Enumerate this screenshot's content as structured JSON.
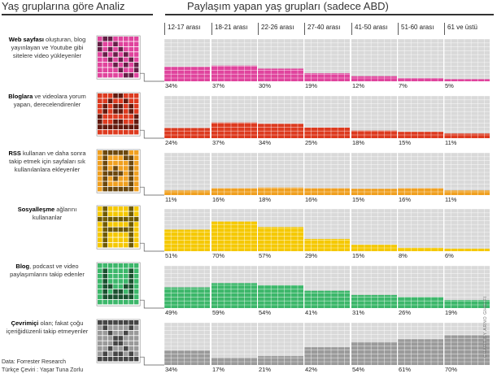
{
  "header": {
    "left_title": "Yaş gruplarına göre Analiz",
    "right_title": "Paylaşım yapan yaş grupları (sadece ABD)"
  },
  "footer": {
    "source": "Data: Forrester Research",
    "translator": "Türkçe Çeviri : Yaşar Tuna Zorlu",
    "credit": "CHART BY ARNO GHELFI"
  },
  "colors": {
    "grid_empty": "#d9d9d9",
    "background": "#ffffff"
  },
  "chart_data": {
    "type": "bar",
    "title": "Paylaşım yapan yaş grupları (sadece ABD)",
    "unit": "%",
    "categories": [
      "12-17 arası",
      "18-21 arası",
      "22-26 arası",
      "27-40 arası",
      "41-50 arası",
      "51-60 arası",
      "61 ve üstü"
    ],
    "series": [
      {
        "bold": "Web sayfası",
        "label": " oluşturan, blog yayınlayan ve Youtube gibi sitelere video yükleyenler",
        "icon": "web-page-icon",
        "color": "#e0449d",
        "values": [
          34,
          37,
          30,
          19,
          12,
          7,
          5
        ]
      },
      {
        "bold": "Bloglara",
        "label": " ve videolara yorum yapan, derecelendirenler",
        "icon": "comment-icon",
        "color": "#dd3a1f",
        "values": [
          24,
          37,
          34,
          25,
          18,
          15,
          11
        ]
      },
      {
        "bold": "RSS",
        "label": " kullanan ve daha sonra takip etmek için sayfaları sık kullanılanlara ekleyenler",
        "icon": "rss-bookmark-icon",
        "color": "#f0a020",
        "values": [
          11,
          16,
          18,
          16,
          15,
          16,
          11
        ]
      },
      {
        "bold": "Sosyalleşme",
        "label": " ağlarını kullananlar",
        "icon": "social-network-icon",
        "color": "#f5c800",
        "values": [
          51,
          70,
          57,
          29,
          15,
          8,
          6
        ]
      },
      {
        "bold": "Blog",
        "label": ", podcast ve video paylaşımlarını takip edenler",
        "icon": "media-follow-icon",
        "color": "#3cb76a",
        "values": [
          49,
          59,
          54,
          41,
          31,
          26,
          19
        ]
      },
      {
        "bold": "Çevrimiçi",
        "label": " olan; fakat çoğu içeriğidüzenli takip etmeyenler",
        "icon": "hourglass-icon",
        "color": "#9a9a9a",
        "values": [
          34,
          17,
          21,
          42,
          54,
          61,
          70
        ]
      }
    ]
  }
}
